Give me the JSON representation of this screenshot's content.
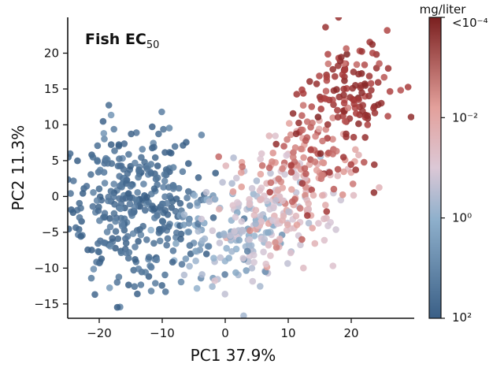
{
  "chart_data": {
    "type": "scatter",
    "title": "Fish EC50",
    "title_main": "Fish EC",
    "title_sub": "50",
    "xlabel": "PC1 37.9%",
    "ylabel": "PC2 11.3%",
    "xlim": [
      -25,
      30
    ],
    "ylim": [
      -17,
      25
    ],
    "x_ticks": [
      -20,
      -10,
      0,
      10,
      20
    ],
    "x_tick_labels": [
      "−20",
      "−10",
      "0",
      "10",
      "20"
    ],
    "y_ticks": [
      -15,
      -10,
      -5,
      0,
      5,
      10,
      15,
      20
    ],
    "y_tick_labels": [
      "−15",
      "−10",
      "−5",
      "0",
      "5",
      "10",
      "15",
      "20"
    ],
    "grid": false,
    "colorbar": {
      "title": "mg/liter",
      "scale": "log",
      "min": 0.0001,
      "max": 100,
      "ticks": [
        0.0001,
        0.01,
        1,
        100
      ],
      "tick_labels": [
        "<10⁻⁴",
        "10⁻²",
        "10⁰",
        "10²"
      ],
      "colors": {
        "low_value": "#7a1f1f",
        "mid_value": "#dcc8d6",
        "high_value": "#3a5f86"
      }
    },
    "point_clusters": [
      {
        "cx": -15,
        "cy": -1,
        "sx": 5.5,
        "sy": 5.5,
        "count": 340,
        "log10": 1.7,
        "log10_sd": 0.25
      },
      {
        "cx": -6,
        "cy": -5,
        "sx": 2.5,
        "sy": 3.5,
        "count": 50,
        "log10": 0.9,
        "log10_sd": 0.5
      },
      {
        "cx": 3,
        "cy": -5,
        "sx": 3.5,
        "sy": 4,
        "count": 110,
        "log10": 0.2,
        "log10_sd": 0.5
      },
      {
        "cx": 9,
        "cy": -1,
        "sx": 4,
        "sy": 4,
        "count": 160,
        "log10": -0.9,
        "log10_sd": 0.55
      },
      {
        "cx": 14,
        "cy": 5,
        "sx": 4,
        "sy": 3.5,
        "count": 100,
        "log10": -1.9,
        "log10_sd": 0.5
      },
      {
        "cx": 20,
        "cy": 14,
        "sx": 3.5,
        "sy": 4,
        "count": 130,
        "log10": -3.1,
        "log10_sd": 0.45
      }
    ]
  }
}
